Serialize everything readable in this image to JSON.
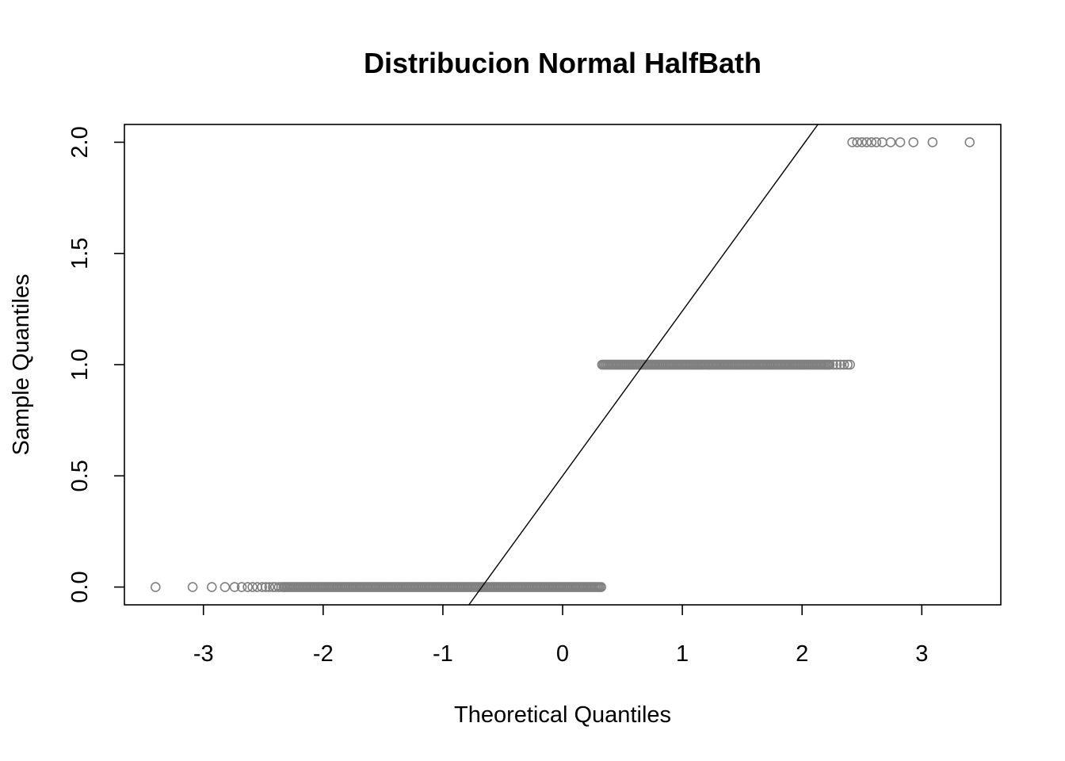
{
  "chart_data": {
    "type": "scatter",
    "title": "Distribucion Normal HalfBath",
    "xlabel": "Theoretical Quantiles",
    "ylabel": "Sample Quantiles",
    "xlim": [
      -3.66,
      3.66
    ],
    "ylim": [
      -0.08,
      2.08
    ],
    "x_ticks": [
      -3,
      -2,
      -1,
      0,
      1,
      2,
      3
    ],
    "x_tick_labels": [
      "-3",
      "-2",
      "-1",
      "0",
      "1",
      "2",
      "3"
    ],
    "y_ticks": [
      0.0,
      0.5,
      1.0,
      1.5,
      2.0
    ],
    "y_tick_labels": [
      "0.0",
      "0.5",
      "1.0",
      "1.5",
      "2.0"
    ],
    "grid": false,
    "point_color": "#808080",
    "line_color": "#000000",
    "reference_line": {
      "intercept": 0.5,
      "slope": 0.741
    },
    "series": [
      {
        "values": [
          {
            "y": 0,
            "x_min": -3.4,
            "x_max": 0.33,
            "outliers_low": [
              -3.4,
              -3.09,
              -2.93,
              -2.82,
              -2.74,
              -2.68,
              -2.63,
              -2.59,
              -2.55,
              -2.51,
              -2.48,
              -2.45,
              -2.42,
              -2.4,
              -2.37,
              -2.35,
              -2.33
            ]
          },
          {
            "y": 1,
            "x_min": 0.33,
            "x_max": 2.4,
            "outliers_high": [
              2.23,
              2.26,
              2.29,
              2.32,
              2.35,
              2.38,
              2.4
            ]
          },
          {
            "y": 2,
            "x_min": 2.42,
            "x_max": 3.4,
            "points": [
              2.42,
              2.46,
              2.5,
              2.54,
              2.58,
              2.62,
              2.67,
              2.74,
              2.82,
              2.93,
              3.09,
              3.4
            ]
          }
        ]
      }
    ]
  }
}
